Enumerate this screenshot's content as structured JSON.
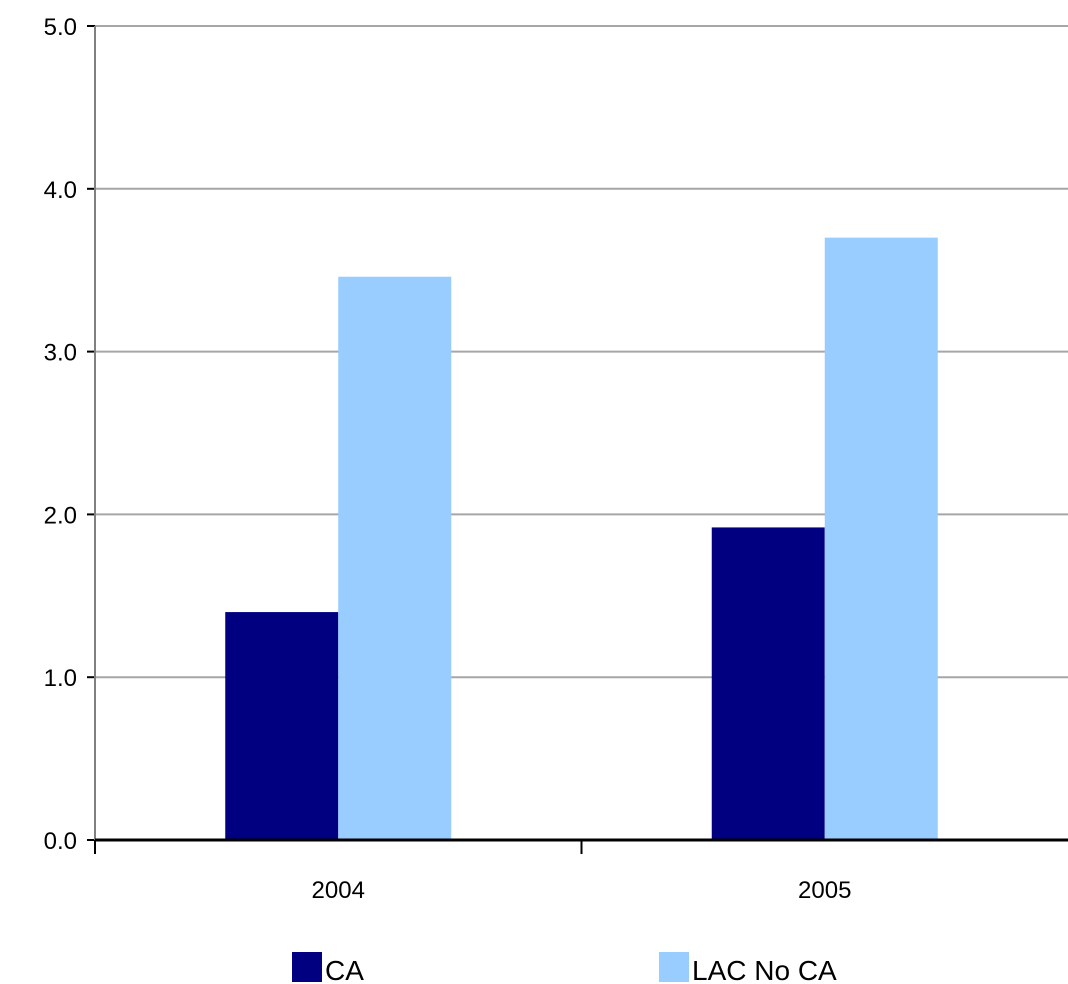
{
  "chart_data": {
    "type": "bar",
    "categories": [
      "2004",
      "2005"
    ],
    "series": [
      {
        "name": "CA",
        "values": [
          1.4,
          1.92
        ],
        "color": "#000080"
      },
      {
        "name": "LAC No CA",
        "values": [
          3.46,
          3.7
        ],
        "color": "#99ccff"
      }
    ],
    "ylim": [
      0,
      5
    ],
    "yticks": [
      "0.0",
      "1.0",
      "2.0",
      "3.0",
      "4.0",
      "5.0"
    ],
    "grid": true,
    "grid_color": "#a6a6a6",
    "legend_position": "bottom"
  }
}
